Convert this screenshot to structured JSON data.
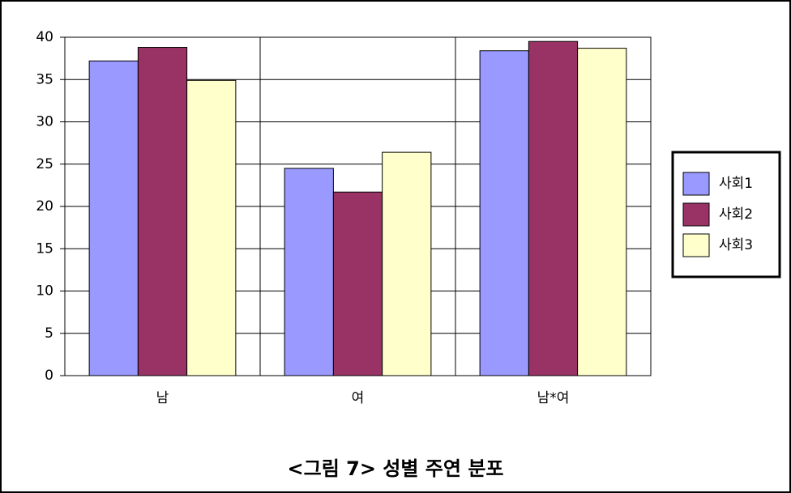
{
  "chart_data": {
    "type": "bar",
    "caption": "<그림 7> 성별 주연 분포",
    "categories": [
      "남",
      "여",
      "남*여"
    ],
    "series": [
      {
        "name": "사회1",
        "color": "#9999ff",
        "values": [
          37.2,
          24.5,
          38.4
        ]
      },
      {
        "name": "사회2",
        "color": "#993366",
        "values": [
          38.8,
          21.7,
          39.5
        ]
      },
      {
        "name": "사회3",
        "color": "#ffffcc",
        "values": [
          34.9,
          26.4,
          38.7
        ]
      }
    ],
    "ylim": [
      0,
      40
    ],
    "yticks": [
      0,
      5,
      10,
      15,
      20,
      25,
      30,
      35,
      40
    ],
    "grid": true,
    "legend": "right"
  }
}
